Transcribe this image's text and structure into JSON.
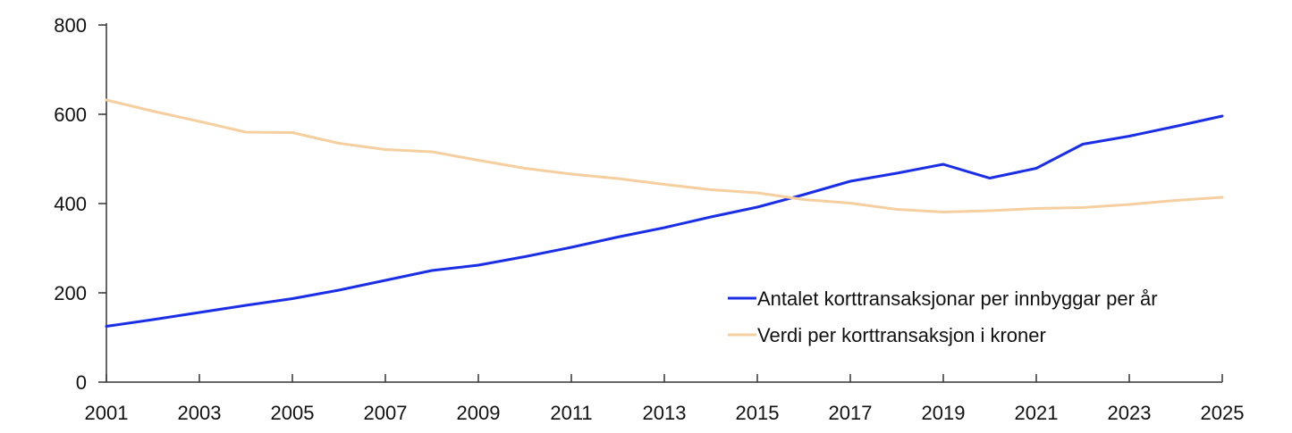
{
  "chart_data": {
    "type": "line",
    "title": "",
    "xlabel": "",
    "ylabel": "",
    "xlim": [
      2001,
      2025
    ],
    "ylim": [
      0,
      800
    ],
    "yticks": [
      0,
      200,
      400,
      600,
      800
    ],
    "xticks": [
      2001,
      2003,
      2005,
      2007,
      2009,
      2011,
      2013,
      2015,
      2017,
      2019,
      2021,
      2023,
      2025
    ],
    "grid": false,
    "legend_position": "bottom-right",
    "x": [
      2001,
      2002,
      2003,
      2004,
      2005,
      2006,
      2007,
      2008,
      2009,
      2010,
      2011,
      2012,
      2013,
      2014,
      2015,
      2016,
      2017,
      2018,
      2019,
      2020,
      2021,
      2022,
      2023,
      2024,
      2025
    ],
    "series": [
      {
        "name": "Antalet korttransaksjonar per innbyggar per år",
        "color": "#1a2ee6",
        "values": [
          125,
          140,
          156,
          172,
          187,
          206,
          228,
          250,
          262,
          281,
          302,
          325,
          346,
          370,
          392,
          420,
          450,
          468,
          488,
          457,
          479,
          533,
          551,
          573,
          596
        ]
      },
      {
        "name": "Verdi per korttransaksjon i kroner",
        "color": "#f5cf9f",
        "values": [
          632,
          607,
          584,
          560,
          559,
          535,
          521,
          516,
          497,
          479,
          466,
          456,
          443,
          431,
          424,
          409,
          401,
          387,
          381,
          384,
          389,
          391,
          398,
          407,
          414
        ]
      }
    ]
  }
}
